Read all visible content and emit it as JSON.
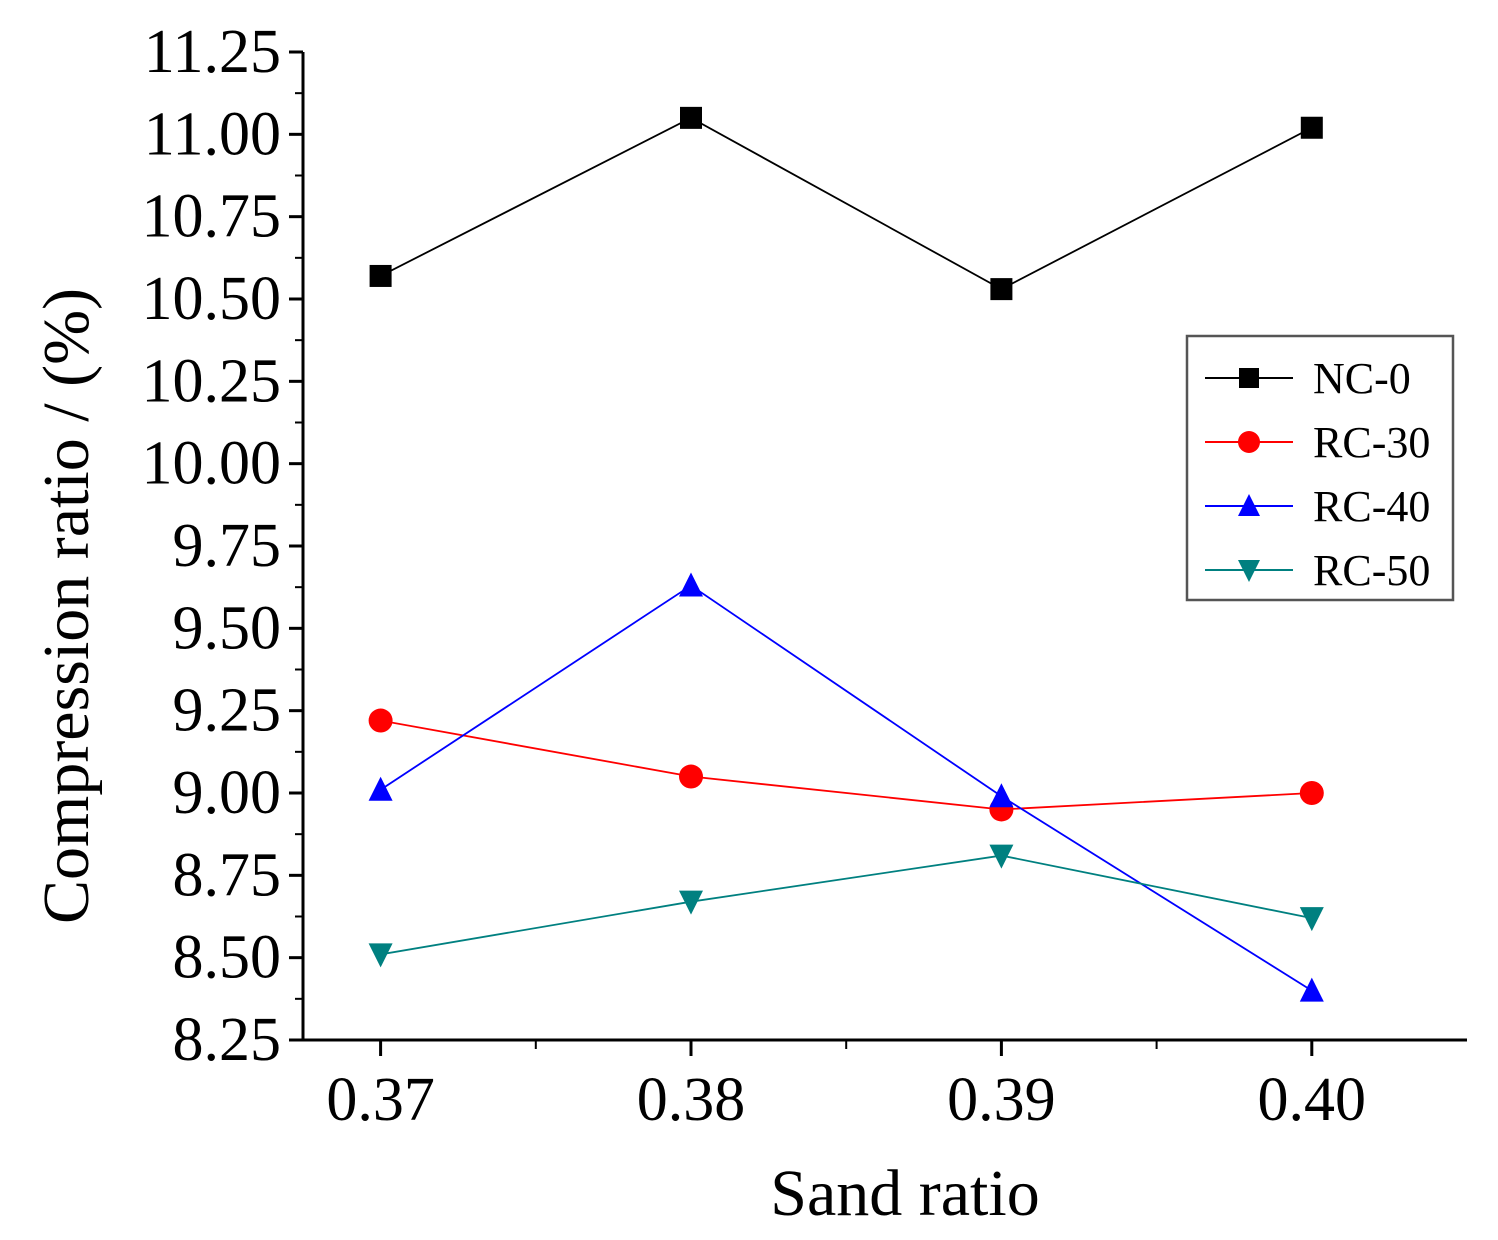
{
  "chart_data": {
    "type": "line",
    "title": "",
    "xlabel": "Sand ratio",
    "ylabel": "Compression ratio / (%)",
    "x": [
      0.37,
      0.38,
      0.39,
      0.4
    ],
    "x_tick_labels": [
      "0.37",
      "0.38",
      "0.39",
      "0.40"
    ],
    "xlim": [
      0.3675,
      0.405
    ],
    "ylim": [
      8.25,
      11.25
    ],
    "y_ticks": [
      8.25,
      8.5,
      8.75,
      9.0,
      9.25,
      9.5,
      9.75,
      10.0,
      10.25,
      10.5,
      10.75,
      11.0,
      11.25
    ],
    "y_tick_labels": [
      "8.25",
      "8.50",
      "8.75",
      "9.00",
      "9.25",
      "9.50",
      "9.75",
      "10.00",
      "10.25",
      "10.50",
      "10.75",
      "11.00",
      "11.25"
    ],
    "grid": false,
    "legend_position": "right",
    "series": [
      {
        "name": "NC-0",
        "values": [
          10.57,
          11.05,
          10.53,
          11.02
        ],
        "color": "#000000",
        "marker": "square"
      },
      {
        "name": "RC-30",
        "values": [
          9.22,
          9.05,
          8.95,
          9.0
        ],
        "color": "#ff0000",
        "marker": "circle"
      },
      {
        "name": "RC-40",
        "values": [
          9.01,
          9.63,
          8.99,
          8.4
        ],
        "color": "#0000ff",
        "marker": "triangle-up"
      },
      {
        "name": "RC-50",
        "values": [
          8.51,
          8.67,
          8.81,
          8.62
        ],
        "color": "#008080",
        "marker": "triangle-down"
      }
    ]
  }
}
